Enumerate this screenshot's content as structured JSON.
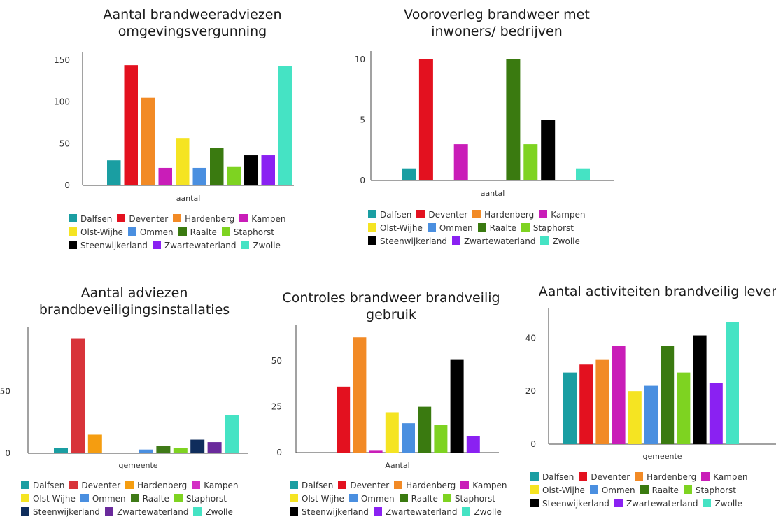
{
  "chart_data": [
    {
      "type": "bar",
      "title": "Aantal brandweeradviezen omgevingsvergunning",
      "title_lines": [
        "Aantal brandweeradviezen",
        "omgevingsvergunning"
      ],
      "xlabel": "aantal",
      "ylabel": "",
      "ylim": [
        0,
        150
      ],
      "yticks": [
        0,
        50,
        100,
        150
      ],
      "grid": false,
      "legend_position": "bottom",
      "series": [
        {
          "name": "Dalfsen",
          "color": "#1a9ea2",
          "values": [
            30
          ]
        },
        {
          "name": "Deventer",
          "color": "#e3111f",
          "values": [
            144
          ]
        },
        {
          "name": "Hardenberg",
          "color": "#f28a25",
          "values": [
            105
          ]
        },
        {
          "name": "Kampen",
          "color": "#c91db8",
          "values": [
            21
          ]
        },
        {
          "name": "Olst-Wijhe",
          "color": "#f5e422",
          "values": [
            56
          ]
        },
        {
          "name": "Ommen",
          "color": "#4a8fe0",
          "values": [
            21
          ]
        },
        {
          "name": "Raalte",
          "color": "#3a7a10",
          "values": [
            45
          ]
        },
        {
          "name": "Staphorst",
          "color": "#7ed321",
          "values": [
            22
          ]
        },
        {
          "name": "Steenwijkerland",
          "color": "#000000",
          "values": [
            36
          ]
        },
        {
          "name": "Zwartewaterland",
          "color": "#8a21f2",
          "values": [
            36
          ]
        },
        {
          "name": "Zwolle",
          "color": "#45e3c4",
          "values": [
            143
          ]
        }
      ]
    },
    {
      "type": "bar",
      "title": "Vooroverleg brandweer met inwoners/ bedrijven",
      "title_lines": [
        "Vooroverleg brandweer met",
        "inwoners/ bedrijven"
      ],
      "xlabel": "aantal",
      "ylabel": "",
      "ylim": [
        0,
        10
      ],
      "yticks": [
        0,
        5,
        10
      ],
      "grid": false,
      "legend_position": "bottom",
      "series": [
        {
          "name": "Dalfsen",
          "color": "#1a9ea2",
          "values": [
            1
          ]
        },
        {
          "name": "Deventer",
          "color": "#e3111f",
          "values": [
            10
          ]
        },
        {
          "name": "Hardenberg",
          "color": "#f28a25",
          "values": [
            0
          ]
        },
        {
          "name": "Kampen",
          "color": "#c91db8",
          "values": [
            3
          ]
        },
        {
          "name": "Olst-Wijhe",
          "color": "#f5e422",
          "values": [
            0
          ]
        },
        {
          "name": "Ommen",
          "color": "#4a8fe0",
          "values": [
            0
          ]
        },
        {
          "name": "Raalte",
          "color": "#3a7a10",
          "values": [
            10
          ]
        },
        {
          "name": "Staphorst",
          "color": "#7ed321",
          "values": [
            3
          ]
        },
        {
          "name": "Steenwijkerland",
          "color": "#000000",
          "values": [
            5
          ]
        },
        {
          "name": "Zwartewaterland",
          "color": "#8a21f2",
          "values": [
            0
          ]
        },
        {
          "name": "Zwolle",
          "color": "#45e3c4",
          "values": [
            1
          ]
        }
      ]
    },
    {
      "type": "bar",
      "title": "Aantal adviezen brandbeveiligingsinstallaties",
      "title_lines": [
        "Aantal adviezen",
        "brandbeveiligingsinstallaties"
      ],
      "xlabel": "gemeente",
      "ylabel": "",
      "ylim": [
        0,
        95
      ],
      "yticks": [
        0,
        50
      ],
      "grid": false,
      "legend_position": "bottom",
      "series": [
        {
          "name": "Dalfsen",
          "color": "#1a9ea2",
          "values": [
            4
          ]
        },
        {
          "name": "Deventer",
          "color": "#d8343a",
          "values": [
            93
          ]
        },
        {
          "name": "Hardenberg",
          "color": "#f59d10",
          "values": [
            15
          ]
        },
        {
          "name": "Kampen",
          "color": "#d42fc5",
          "values": [
            0
          ]
        },
        {
          "name": "Olst-Wijhe",
          "color": "#f5e422",
          "values": [
            0
          ]
        },
        {
          "name": "Ommen",
          "color": "#4a8fe0",
          "values": [
            3
          ]
        },
        {
          "name": "Raalte",
          "color": "#3f7a17",
          "values": [
            6
          ]
        },
        {
          "name": "Staphorst",
          "color": "#7ed321",
          "values": [
            4
          ]
        },
        {
          "name": "Steenwijkerland",
          "color": "#0f2d5c",
          "values": [
            11
          ]
        },
        {
          "name": "Zwartewaterland",
          "color": "#6a2a9c",
          "values": [
            9
          ]
        },
        {
          "name": "Zwolle",
          "color": "#45e3c4",
          "values": [
            31
          ]
        }
      ]
    },
    {
      "type": "bar",
      "title": "Controles brandweer brandveilig gebruik",
      "title_lines": [
        "Controles brandweer brandveilig",
        "gebruik"
      ],
      "xlabel": "Aantal",
      "ylabel": "",
      "ylim": [
        0,
        65
      ],
      "yticks": [
        0,
        25,
        50
      ],
      "grid": false,
      "legend_position": "bottom",
      "series": [
        {
          "name": "Dalfsen",
          "color": "#1a9ea2",
          "values": [
            0
          ]
        },
        {
          "name": "Deventer",
          "color": "#e3111f",
          "values": [
            36
          ]
        },
        {
          "name": "Hardenberg",
          "color": "#f28a25",
          "values": [
            63
          ]
        },
        {
          "name": "Kampen",
          "color": "#c91db8",
          "values": [
            1
          ]
        },
        {
          "name": "Olst-Wijhe",
          "color": "#f5e422",
          "values": [
            22
          ]
        },
        {
          "name": "Ommen",
          "color": "#4a8fe0",
          "values": [
            16
          ]
        },
        {
          "name": "Raalte",
          "color": "#3a7a10",
          "values": [
            25
          ]
        },
        {
          "name": "Staphorst",
          "color": "#7ed321",
          "values": [
            15
          ]
        },
        {
          "name": "Steenwijkerland",
          "color": "#000000",
          "values": [
            51
          ]
        },
        {
          "name": "Zwartewaterland",
          "color": "#8a21f2",
          "values": [
            9
          ]
        },
        {
          "name": "Zwolle",
          "color": "#45e3c4",
          "values": [
            0
          ]
        }
      ]
    },
    {
      "type": "bar",
      "title": "Aantal activiteiten brandveilig leven",
      "title_lines": [
        "Aantal activiteiten brandveilig leven"
      ],
      "xlabel": "gemeente",
      "ylabel": "",
      "ylim": [
        0,
        48
      ],
      "yticks": [
        0,
        20,
        40
      ],
      "grid": false,
      "legend_position": "bottom",
      "series": [
        {
          "name": "Dalfsen",
          "color": "#1a9ea2",
          "values": [
            27
          ]
        },
        {
          "name": "Deventer",
          "color": "#e3111f",
          "values": [
            30
          ]
        },
        {
          "name": "Hardenberg",
          "color": "#f28a25",
          "values": [
            32
          ]
        },
        {
          "name": "Kampen",
          "color": "#c91db8",
          "values": [
            37
          ]
        },
        {
          "name": "Olst-Wijhe",
          "color": "#f5e422",
          "values": [
            20
          ]
        },
        {
          "name": "Ommen",
          "color": "#4a8fe0",
          "values": [
            22
          ]
        },
        {
          "name": "Raalte",
          "color": "#3a7a10",
          "values": [
            37
          ]
        },
        {
          "name": "Staphorst",
          "color": "#7ed321",
          "values": [
            27
          ]
        },
        {
          "name": "Steenwijkerland",
          "color": "#000000",
          "values": [
            41
          ]
        },
        {
          "name": "Zwartewaterland",
          "color": "#8a21f2",
          "values": [
            23
          ]
        },
        {
          "name": "Zwolle",
          "color": "#45e3c4",
          "values": [
            46
          ]
        }
      ]
    }
  ]
}
